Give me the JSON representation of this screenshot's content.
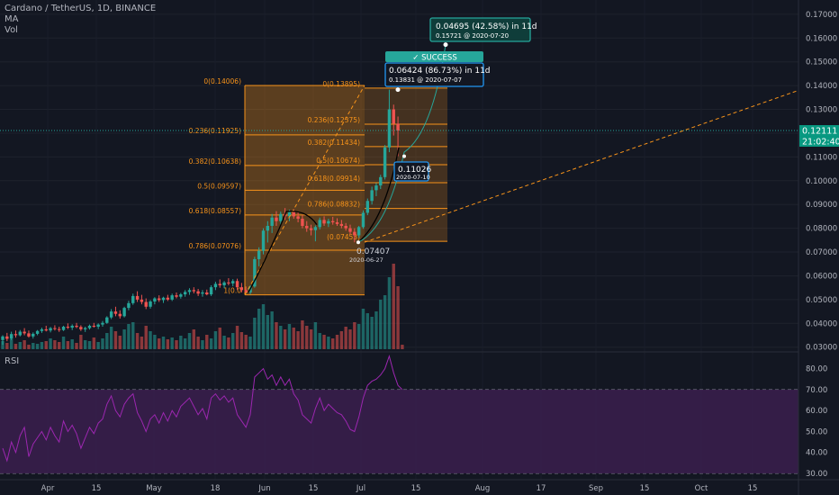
{
  "header": {
    "symbol_line": "Cardano / TetherUS, 1D, BINANCE",
    "ma_label": "MA",
    "vol_label": "Vol"
  },
  "rsi_label": "RSI",
  "colors": {
    "background": "#131722",
    "up": "#26a69a",
    "down": "#ef5350",
    "fib": "#f7931a",
    "rsi": "#9c27b0",
    "rsi_band": "#3b1f4d",
    "success": "#26a69a",
    "axis_text": "#b2b5be",
    "price_tag": "#089981"
  },
  "chart_data": {
    "type": "candlestick",
    "price_axis": {
      "ylim": [
        0.028,
        0.176
      ],
      "ticks": [
        "0.03000",
        "0.04000",
        "0.05000",
        "0.06000",
        "0.07000",
        "0.08000",
        "0.09000",
        "0.10000",
        "0.11000",
        "0.12000",
        "0.13000",
        "0.14000",
        "0.15000",
        "0.16000",
        "0.17000"
      ]
    },
    "rsi_axis": {
      "ylim": [
        27,
        88
      ],
      "ticks": [
        "30.00",
        "40.00",
        "50.00",
        "60.00",
        "70.00",
        "80.00"
      ],
      "band": [
        30,
        70
      ]
    },
    "time_axis": {
      "ticks": [
        "Apr",
        "15",
        "May",
        "18",
        "Jun",
        "15",
        "Jul",
        "15",
        "Aug",
        "17",
        "Sep",
        "15",
        "Oct",
        "15"
      ]
    },
    "current_price": {
      "value": "0.12111",
      "countdown": "21:02:40"
    },
    "candles": [
      {
        "o": 0.033,
        "h": 0.035,
        "l": 0.031,
        "c": 0.0345
      },
      {
        "o": 0.0345,
        "h": 0.036,
        "l": 0.0325,
        "c": 0.0335
      },
      {
        "o": 0.0335,
        "h": 0.0365,
        "l": 0.033,
        "c": 0.0355
      },
      {
        "o": 0.0355,
        "h": 0.037,
        "l": 0.034,
        "c": 0.035
      },
      {
        "o": 0.035,
        "h": 0.0372,
        "l": 0.0345,
        "c": 0.0365
      },
      {
        "o": 0.0365,
        "h": 0.038,
        "l": 0.035,
        "c": 0.0358
      },
      {
        "o": 0.0358,
        "h": 0.037,
        "l": 0.034,
        "c": 0.0345
      },
      {
        "o": 0.0345,
        "h": 0.0362,
        "l": 0.0336,
        "c": 0.0356
      },
      {
        "o": 0.0356,
        "h": 0.0372,
        "l": 0.035,
        "c": 0.0368
      },
      {
        "o": 0.0368,
        "h": 0.0382,
        "l": 0.036,
        "c": 0.0375
      },
      {
        "o": 0.0375,
        "h": 0.039,
        "l": 0.0366,
        "c": 0.037
      },
      {
        "o": 0.037,
        "h": 0.0385,
        "l": 0.0362,
        "c": 0.038
      },
      {
        "o": 0.038,
        "h": 0.0392,
        "l": 0.037,
        "c": 0.0376
      },
      {
        "o": 0.0376,
        "h": 0.0386,
        "l": 0.0364,
        "c": 0.0372
      },
      {
        "o": 0.0372,
        "h": 0.039,
        "l": 0.0368,
        "c": 0.0386
      },
      {
        "o": 0.0386,
        "h": 0.04,
        "l": 0.0376,
        "c": 0.0382
      },
      {
        "o": 0.0382,
        "h": 0.0396,
        "l": 0.0372,
        "c": 0.039
      },
      {
        "o": 0.039,
        "h": 0.0402,
        "l": 0.038,
        "c": 0.0385
      },
      {
        "o": 0.0385,
        "h": 0.0392,
        "l": 0.0368,
        "c": 0.0375
      },
      {
        "o": 0.0375,
        "h": 0.0386,
        "l": 0.0364,
        "c": 0.038
      },
      {
        "o": 0.038,
        "h": 0.0395,
        "l": 0.0374,
        "c": 0.039
      },
      {
        "o": 0.039,
        "h": 0.0402,
        "l": 0.0382,
        "c": 0.0386
      },
      {
        "o": 0.0386,
        "h": 0.04,
        "l": 0.0376,
        "c": 0.0395
      },
      {
        "o": 0.0395,
        "h": 0.041,
        "l": 0.0386,
        "c": 0.0402
      },
      {
        "o": 0.0402,
        "h": 0.043,
        "l": 0.0398,
        "c": 0.0425
      },
      {
        "o": 0.0425,
        "h": 0.046,
        "l": 0.0418,
        "c": 0.045
      },
      {
        "o": 0.045,
        "h": 0.047,
        "l": 0.043,
        "c": 0.044
      },
      {
        "o": 0.044,
        "h": 0.0455,
        "l": 0.042,
        "c": 0.043
      },
      {
        "o": 0.043,
        "h": 0.047,
        "l": 0.0425,
        "c": 0.0465
      },
      {
        "o": 0.0465,
        "h": 0.0495,
        "l": 0.0455,
        "c": 0.0485
      },
      {
        "o": 0.0485,
        "h": 0.0525,
        "l": 0.0478,
        "c": 0.0515
      },
      {
        "o": 0.0515,
        "h": 0.0535,
        "l": 0.049,
        "c": 0.05
      },
      {
        "o": 0.05,
        "h": 0.052,
        "l": 0.048,
        "c": 0.049
      },
      {
        "o": 0.049,
        "h": 0.0505,
        "l": 0.046,
        "c": 0.047
      },
      {
        "o": 0.047,
        "h": 0.0498,
        "l": 0.0462,
        "c": 0.0492
      },
      {
        "o": 0.0492,
        "h": 0.051,
        "l": 0.048,
        "c": 0.0505
      },
      {
        "o": 0.0505,
        "h": 0.0518,
        "l": 0.049,
        "c": 0.0498
      },
      {
        "o": 0.0498,
        "h": 0.0512,
        "l": 0.0486,
        "c": 0.0508
      },
      {
        "o": 0.0508,
        "h": 0.052,
        "l": 0.0494,
        "c": 0.05
      },
      {
        "o": 0.05,
        "h": 0.0525,
        "l": 0.0494,
        "c": 0.0518
      },
      {
        "o": 0.0518,
        "h": 0.053,
        "l": 0.0505,
        "c": 0.0512
      },
      {
        "o": 0.0512,
        "h": 0.0528,
        "l": 0.0504,
        "c": 0.0522
      },
      {
        "o": 0.0522,
        "h": 0.054,
        "l": 0.0512,
        "c": 0.0532
      },
      {
        "o": 0.0532,
        "h": 0.0548,
        "l": 0.052,
        "c": 0.054
      },
      {
        "o": 0.054,
        "h": 0.0552,
        "l": 0.0526,
        "c": 0.0535
      },
      {
        "o": 0.0535,
        "h": 0.0545,
        "l": 0.0515,
        "c": 0.0525
      },
      {
        "o": 0.0525,
        "h": 0.054,
        "l": 0.0512,
        "c": 0.053
      },
      {
        "o": 0.053,
        "h": 0.0542,
        "l": 0.0518,
        "c": 0.0522
      },
      {
        "o": 0.0522,
        "h": 0.056,
        "l": 0.0515,
        "c": 0.0552
      },
      {
        "o": 0.0552,
        "h": 0.0575,
        "l": 0.054,
        "c": 0.0566
      },
      {
        "o": 0.0566,
        "h": 0.0585,
        "l": 0.055,
        "c": 0.056
      },
      {
        "o": 0.056,
        "h": 0.0578,
        "l": 0.0548,
        "c": 0.0572
      },
      {
        "o": 0.0572,
        "h": 0.059,
        "l": 0.056,
        "c": 0.0568
      },
      {
        "o": 0.0568,
        "h": 0.0586,
        "l": 0.0556,
        "c": 0.0578
      },
      {
        "o": 0.0578,
        "h": 0.0588,
        "l": 0.054,
        "c": 0.0552
      },
      {
        "o": 0.0552,
        "h": 0.057,
        "l": 0.053,
        "c": 0.054
      },
      {
        "o": 0.054,
        "h": 0.0555,
        "l": 0.0525,
        "c": 0.053
      },
      {
        "o": 0.053,
        "h": 0.056,
        "l": 0.0522,
        "c": 0.0555
      },
      {
        "o": 0.0555,
        "h": 0.068,
        "l": 0.055,
        "c": 0.067
      },
      {
        "o": 0.067,
        "h": 0.072,
        "l": 0.064,
        "c": 0.0705
      },
      {
        "o": 0.0705,
        "h": 0.08,
        "l": 0.069,
        "c": 0.079
      },
      {
        "o": 0.079,
        "h": 0.083,
        "l": 0.074,
        "c": 0.081
      },
      {
        "o": 0.081,
        "h": 0.086,
        "l": 0.078,
        "c": 0.0845
      },
      {
        "o": 0.0845,
        "h": 0.0872,
        "l": 0.081,
        "c": 0.083
      },
      {
        "o": 0.083,
        "h": 0.087,
        "l": 0.0815,
        "c": 0.086
      },
      {
        "o": 0.086,
        "h": 0.0885,
        "l": 0.0835,
        "c": 0.085
      },
      {
        "o": 0.085,
        "h": 0.0878,
        "l": 0.083,
        "c": 0.0868
      },
      {
        "o": 0.0868,
        "h": 0.088,
        "l": 0.084,
        "c": 0.085
      },
      {
        "o": 0.085,
        "h": 0.087,
        "l": 0.0825,
        "c": 0.084
      },
      {
        "o": 0.084,
        "h": 0.0855,
        "l": 0.08,
        "c": 0.081
      },
      {
        "o": 0.081,
        "h": 0.083,
        "l": 0.0785,
        "c": 0.08
      },
      {
        "o": 0.08,
        "h": 0.0815,
        "l": 0.077,
        "c": 0.0792
      },
      {
        "o": 0.0792,
        "h": 0.0812,
        "l": 0.0745,
        "c": 0.0805
      },
      {
        "o": 0.0805,
        "h": 0.0845,
        "l": 0.0795,
        "c": 0.0835
      },
      {
        "o": 0.0835,
        "h": 0.085,
        "l": 0.081,
        "c": 0.082
      },
      {
        "o": 0.082,
        "h": 0.084,
        "l": 0.0805,
        "c": 0.083
      },
      {
        "o": 0.083,
        "h": 0.0848,
        "l": 0.0815,
        "c": 0.0825
      },
      {
        "o": 0.0825,
        "h": 0.0842,
        "l": 0.081,
        "c": 0.0818
      },
      {
        "o": 0.0818,
        "h": 0.0835,
        "l": 0.08,
        "c": 0.081
      },
      {
        "o": 0.081,
        "h": 0.0822,
        "l": 0.079,
        "c": 0.08
      },
      {
        "o": 0.08,
        "h": 0.0815,
        "l": 0.0775,
        "c": 0.0785
      },
      {
        "o": 0.0785,
        "h": 0.08,
        "l": 0.0741,
        "c": 0.077
      },
      {
        "o": 0.077,
        "h": 0.081,
        "l": 0.076,
        "c": 0.0805
      },
      {
        "o": 0.0805,
        "h": 0.0875,
        "l": 0.0798,
        "c": 0.0865
      },
      {
        "o": 0.0865,
        "h": 0.0925,
        "l": 0.0855,
        "c": 0.0915
      },
      {
        "o": 0.0915,
        "h": 0.0975,
        "l": 0.09,
        "c": 0.096
      },
      {
        "o": 0.096,
        "h": 0.099,
        "l": 0.0935,
        "c": 0.098
      },
      {
        "o": 0.098,
        "h": 0.1025,
        "l": 0.0965,
        "c": 0.1015
      },
      {
        "o": 0.1015,
        "h": 0.115,
        "l": 0.1005,
        "c": 0.114
      },
      {
        "o": 0.114,
        "h": 0.1383,
        "l": 0.112,
        "c": 0.13
      },
      {
        "o": 0.13,
        "h": 0.132,
        "l": 0.119,
        "c": 0.124
      },
      {
        "o": 0.124,
        "h": 0.127,
        "l": 0.1103,
        "c": 0.1211
      }
    ],
    "volume": [
      9,
      7,
      11,
      6,
      8,
      10,
      5,
      7,
      6,
      8,
      9,
      12,
      10,
      8,
      14,
      9,
      11,
      7,
      16,
      10,
      9,
      13,
      8,
      12,
      18,
      25,
      20,
      15,
      22,
      28,
      30,
      18,
      14,
      26,
      20,
      16,
      12,
      14,
      11,
      13,
      10,
      15,
      12,
      18,
      22,
      14,
      10,
      16,
      12,
      20,
      24,
      15,
      13,
      18,
      26,
      19,
      16,
      14,
      35,
      45,
      50,
      38,
      42,
      30,
      26,
      22,
      28,
      24,
      20,
      32,
      26,
      22,
      30,
      18,
      16,
      14,
      12,
      16,
      20,
      25,
      22,
      30,
      28,
      45,
      40,
      36,
      42,
      55,
      60,
      80,
      95,
      70,
      5
    ],
    "rsi": [
      42,
      36,
      45,
      40,
      48,
      52,
      38,
      44,
      47,
      50,
      46,
      52,
      48,
      45,
      55,
      50,
      53,
      49,
      42,
      47,
      52,
      49,
      54,
      56,
      63,
      67,
      60,
      57,
      63,
      66,
      68,
      59,
      55,
      50,
      56,
      58,
      54,
      59,
      55,
      60,
      57,
      62,
      64,
      66,
      62,
      58,
      61,
      56,
      66,
      68,
      65,
      67,
      64,
      66,
      58,
      55,
      52,
      58,
      76,
      78,
      80,
      75,
      77,
      72,
      76,
      72,
      75,
      68,
      65,
      58,
      56,
      54,
      61,
      66,
      60,
      63,
      61,
      59,
      58,
      55,
      51,
      50,
      57,
      66,
      72,
      74,
      75,
      77,
      80,
      86,
      78,
      72,
      70
    ],
    "fib_levels": [
      {
        "label": "0(0.14006)",
        "value": 0.14006
      },
      {
        "label": "0.236(0.11925)",
        "value": 0.11925
      },
      {
        "label": "0.382(0.10638)",
        "value": 0.10638
      },
      {
        "label": "0.5(0.09597)",
        "value": 0.09597
      },
      {
        "label": "0.618(0.08557)",
        "value": 0.08557
      },
      {
        "label": "0.786(0.07076)",
        "value": 0.07076
      },
      {
        "label": "1(0.0",
        "value": 0.052
      }
    ],
    "fib_levels_right": [
      {
        "label": "0(0.13895)",
        "value": 0.13895
      },
      {
        "label": "0.236(0.12375)",
        "value": 0.12375
      },
      {
        "label": "0.382(0.11434)",
        "value": 0.11434
      },
      {
        "label": "0.5(0.10674)",
        "value": 0.10674
      },
      {
        "label": "0.618(0.09914)",
        "value": 0.09914
      },
      {
        "label": "0.786(0.08832)",
        "value": 0.08832
      },
      {
        "label": "(0.07453)",
        "value": 0.07453
      }
    ],
    "annotations": {
      "low_price": "0.07407",
      "low_date": "2020-06-27",
      "success_label": "✓ SUCCESS",
      "target1_main": "0.04695 (42.58%) in 11d",
      "target1_sub": "0.15721 @ 2020-07-20",
      "target2_main": "0.06424 (86.73%) in 11d",
      "target2_sub": "0.13831 @ 2020-07-07",
      "point_value": "0.11026",
      "point_date": "2020-07-10"
    }
  }
}
